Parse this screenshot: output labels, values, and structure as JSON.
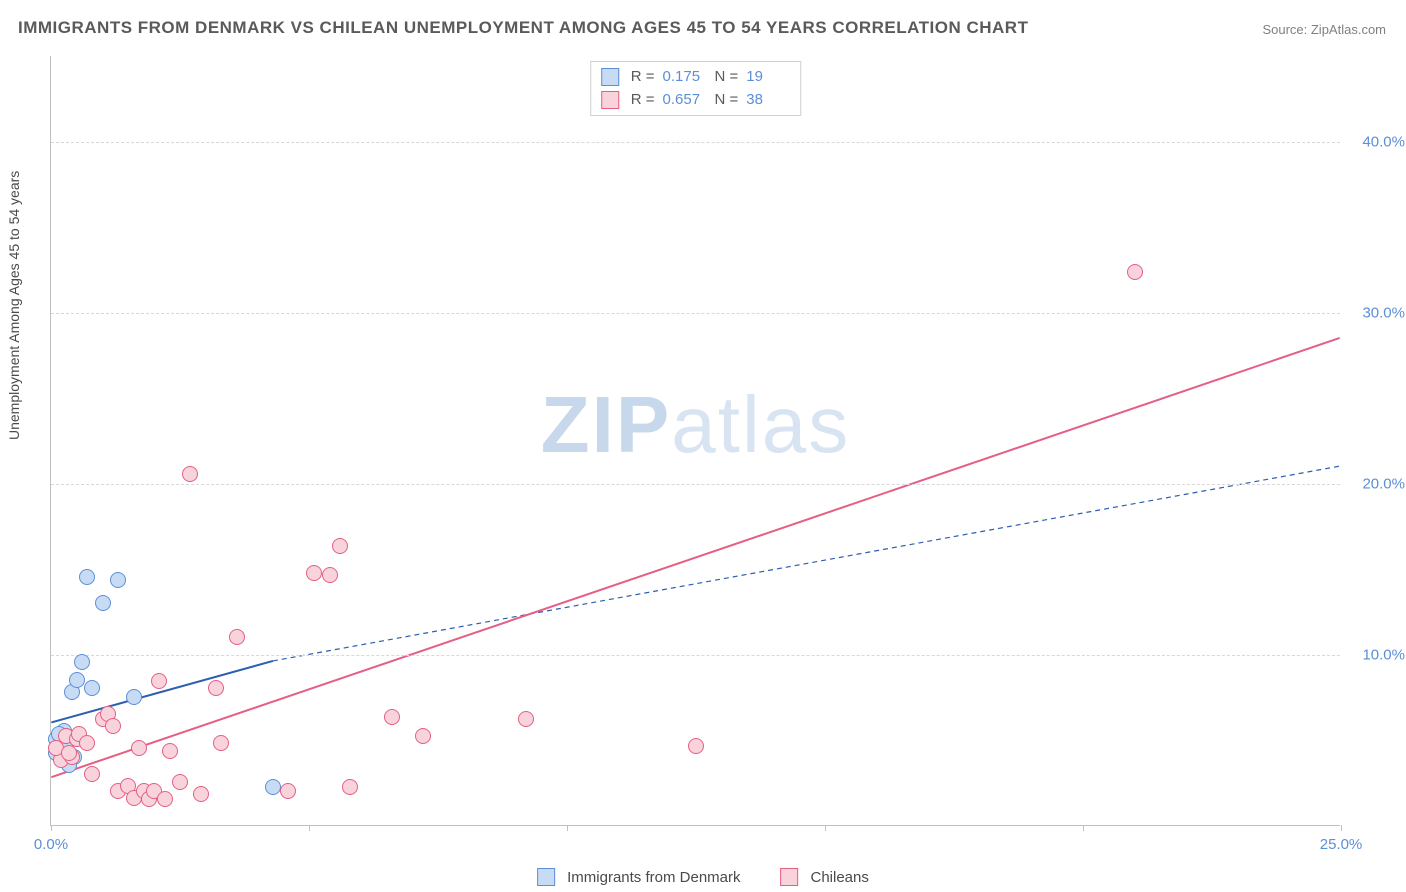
{
  "title": "IMMIGRANTS FROM DENMARK VS CHILEAN UNEMPLOYMENT AMONG AGES 45 TO 54 YEARS CORRELATION CHART",
  "source": "Source: ZipAtlas.com",
  "watermark_bold": "ZIP",
  "watermark_rest": "atlas",
  "y_axis_label": "Unemployment Among Ages 45 to 54 years",
  "chart": {
    "type": "scatter",
    "x_min": 0,
    "x_max": 25,
    "y_min": 0,
    "y_max": 45,
    "x_ticks": [
      0,
      5,
      10,
      15,
      20,
      25
    ],
    "x_tick_labels": {
      "0": "0.0%",
      "25": "25.0%"
    },
    "y_ticks": [
      10,
      20,
      30,
      40
    ],
    "y_tick_labels": {
      "10": "10.0%",
      "20": "20.0%",
      "30": "30.0%",
      "40": "40.0%"
    },
    "grid_color": "#d8d8d8",
    "background_color": "#ffffff",
    "axis_color": "#c0c0c0",
    "tick_label_color": "#5b8fd6",
    "axis_label_color": "#4a4a4a",
    "marker_radius": 8,
    "series": [
      {
        "name": "Immigrants from Denmark",
        "fill": "#c7dcf4",
        "stroke": "#5b8fd6",
        "R": "0.175",
        "N": "19",
        "points": [
          [
            0.1,
            5.0
          ],
          [
            0.2,
            4.8
          ],
          [
            0.25,
            5.5
          ],
          [
            0.3,
            4.5
          ],
          [
            0.3,
            5.2
          ],
          [
            0.4,
            7.8
          ],
          [
            0.45,
            4.0
          ],
          [
            0.5,
            8.5
          ],
          [
            0.6,
            9.5
          ],
          [
            0.7,
            14.5
          ],
          [
            0.8,
            8.0
          ],
          [
            1.0,
            13.0
          ],
          [
            1.3,
            14.3
          ],
          [
            1.6,
            7.5
          ],
          [
            0.35,
            3.5
          ],
          [
            0.1,
            4.2
          ],
          [
            0.5,
            5.0
          ],
          [
            4.3,
            2.2
          ],
          [
            0.15,
            5.3
          ]
        ],
        "trend": {
          "x1": 0,
          "y1": 6.0,
          "x2": 4.3,
          "y2": 9.6,
          "color": "#2d5fb0",
          "width": 2,
          "dash": "none",
          "ext_x2": 25,
          "ext_y2": 21.0,
          "ext_dash": "5,4",
          "ext_width": 1.2
        }
      },
      {
        "name": "Chileans",
        "fill": "#f8d3dc",
        "stroke": "#e55f84",
        "R": "0.657",
        "N": "38",
        "points": [
          [
            0.2,
            3.8
          ],
          [
            0.3,
            5.2
          ],
          [
            0.4,
            4.0
          ],
          [
            0.5,
            5.0
          ],
          [
            0.55,
            5.3
          ],
          [
            0.7,
            4.8
          ],
          [
            0.8,
            3.0
          ],
          [
            1.0,
            6.2
          ],
          [
            1.1,
            6.5
          ],
          [
            1.2,
            5.8
          ],
          [
            1.3,
            2.0
          ],
          [
            1.5,
            2.3
          ],
          [
            1.6,
            1.6
          ],
          [
            1.7,
            4.5
          ],
          [
            1.8,
            2.0
          ],
          [
            1.9,
            1.5
          ],
          [
            2.0,
            2.0
          ],
          [
            2.1,
            8.4
          ],
          [
            2.2,
            1.5
          ],
          [
            2.3,
            4.3
          ],
          [
            2.5,
            2.5
          ],
          [
            2.7,
            20.5
          ],
          [
            2.9,
            1.8
          ],
          [
            3.2,
            8.0
          ],
          [
            3.3,
            4.8
          ],
          [
            3.6,
            11.0
          ],
          [
            4.6,
            2.0
          ],
          [
            5.1,
            14.7
          ],
          [
            5.4,
            14.6
          ],
          [
            5.6,
            16.3
          ],
          [
            5.8,
            2.2
          ],
          [
            6.6,
            6.3
          ],
          [
            7.2,
            5.2
          ],
          [
            9.2,
            6.2
          ],
          [
            12.5,
            4.6
          ],
          [
            21.0,
            32.3
          ],
          [
            0.1,
            4.5
          ],
          [
            0.35,
            4.2
          ]
        ],
        "trend": {
          "x1": 0,
          "y1": 2.8,
          "x2": 25,
          "y2": 28.5,
          "color": "#e55f84",
          "width": 2,
          "dash": "none"
        }
      }
    ]
  },
  "legend_bottom": [
    {
      "swatch_fill": "#c7dcf4",
      "swatch_stroke": "#5b8fd6",
      "label": "Immigrants from Denmark"
    },
    {
      "swatch_fill": "#f8d3dc",
      "swatch_stroke": "#e55f84",
      "label": "Chileans"
    }
  ]
}
